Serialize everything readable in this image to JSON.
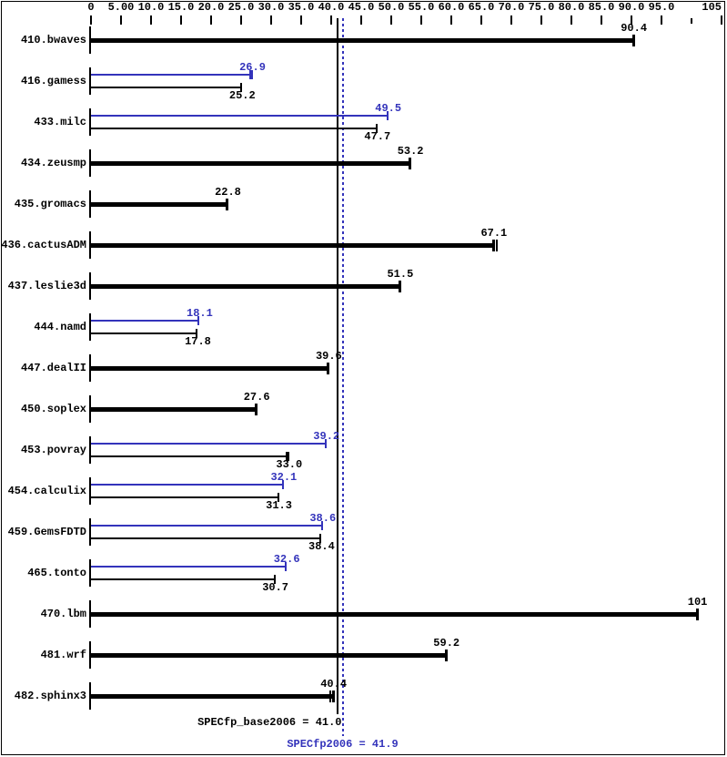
{
  "page_title": "SPECfp2006 result graph",
  "colors": {
    "base": "#000000",
    "peak": "#3333bb",
    "background": "#ffffff"
  },
  "chart_data": {
    "type": "bar",
    "orientation": "horizontal",
    "title": "",
    "xlabel": "",
    "ylabel": "",
    "axis": {
      "min": 0,
      "max": 105,
      "tick_step": 5,
      "position": "top",
      "tick_labels": [
        "0",
        "5.00",
        "10.0",
        "15.0",
        "20.0",
        "25.0",
        "30.0",
        "35.0",
        "40.0",
        "45.0",
        "50.0",
        "55.0",
        "60.0",
        "65.0",
        "70.0",
        "75.0",
        "80.0",
        "85.0",
        "90.0",
        "95.0",
        "",
        "105"
      ]
    },
    "grid": false,
    "legend": "none",
    "benchmarks": [
      {
        "name": "410.bwaves",
        "bars": [
          {
            "kind": "single",
            "value": 90.4,
            "label": "90.4"
          }
        ]
      },
      {
        "name": "416.gamess",
        "bars": [
          {
            "kind": "peak",
            "value": 26.9,
            "label": "26.9",
            "extra_ticks": [
              26.45
            ]
          },
          {
            "kind": "base",
            "value": 25.2,
            "label": "25.2"
          }
        ]
      },
      {
        "name": "433.milc",
        "bars": [
          {
            "kind": "peak",
            "value": 49.5,
            "label": "49.5"
          },
          {
            "kind": "base",
            "value": 47.7,
            "label": "47.7"
          }
        ]
      },
      {
        "name": "434.zeusmp",
        "bars": [
          {
            "kind": "single",
            "value": 53.2,
            "label": "53.2"
          }
        ]
      },
      {
        "name": "435.gromacs",
        "bars": [
          {
            "kind": "single",
            "value": 22.8,
            "label": "22.8"
          }
        ]
      },
      {
        "name": "436.cactusADM",
        "bars": [
          {
            "kind": "single",
            "value": 67.1,
            "label": "67.1",
            "extra_ticks": [
              67.65
            ]
          }
        ]
      },
      {
        "name": "437.leslie3d",
        "bars": [
          {
            "kind": "single",
            "value": 51.5,
            "label": "51.5"
          }
        ]
      },
      {
        "name": "444.namd",
        "bars": [
          {
            "kind": "peak",
            "value": 18.1,
            "label": "18.1"
          },
          {
            "kind": "base",
            "value": 17.8,
            "label": "17.8"
          }
        ]
      },
      {
        "name": "447.dealII",
        "bars": [
          {
            "kind": "single",
            "value": 39.6,
            "label": "39.6"
          }
        ]
      },
      {
        "name": "450.soplex",
        "bars": [
          {
            "kind": "single",
            "value": 27.6,
            "label": "27.6"
          }
        ]
      },
      {
        "name": "453.povray",
        "bars": [
          {
            "kind": "peak",
            "value": 39.2,
            "label": "39.2"
          },
          {
            "kind": "base",
            "value": 33.0,
            "label": "33.0",
            "extra_ticks": [
              32.5
            ]
          }
        ]
      },
      {
        "name": "454.calculix",
        "bars": [
          {
            "kind": "peak",
            "value": 32.1,
            "label": "32.1"
          },
          {
            "kind": "base",
            "value": 31.3,
            "label": "31.3",
            "extra_ticks": [
              31.15
            ]
          }
        ]
      },
      {
        "name": "459.GemsFDTD",
        "bars": [
          {
            "kind": "peak",
            "value": 38.6,
            "label": "38.6"
          },
          {
            "kind": "base",
            "value": 38.4,
            "label": "38.4"
          }
        ]
      },
      {
        "name": "465.tonto",
        "bars": [
          {
            "kind": "peak",
            "value": 32.6,
            "label": "32.6"
          },
          {
            "kind": "base",
            "value": 30.7,
            "label": "30.7"
          }
        ]
      },
      {
        "name": "470.lbm",
        "bars": [
          {
            "kind": "single",
            "value": 101,
            "label": "101"
          }
        ]
      },
      {
        "name": "481.wrf",
        "bars": [
          {
            "kind": "single",
            "value": 59.2,
            "label": "59.2"
          }
        ]
      },
      {
        "name": "482.sphinx3",
        "bars": [
          {
            "kind": "single",
            "value": 40.4,
            "label": "40.4",
            "extra_ticks": [
              39.85
            ]
          }
        ]
      }
    ],
    "reference_lines": [
      {
        "id": "base-mean",
        "value": 41.0,
        "style": "solid",
        "color": "#000000",
        "label": "SPECfp_base2006 = 41.0"
      },
      {
        "id": "peak-mean",
        "value": 41.9,
        "style": "dotted",
        "color": "#3333bb",
        "label": "SPECfp2006 = 41.9"
      }
    ]
  }
}
